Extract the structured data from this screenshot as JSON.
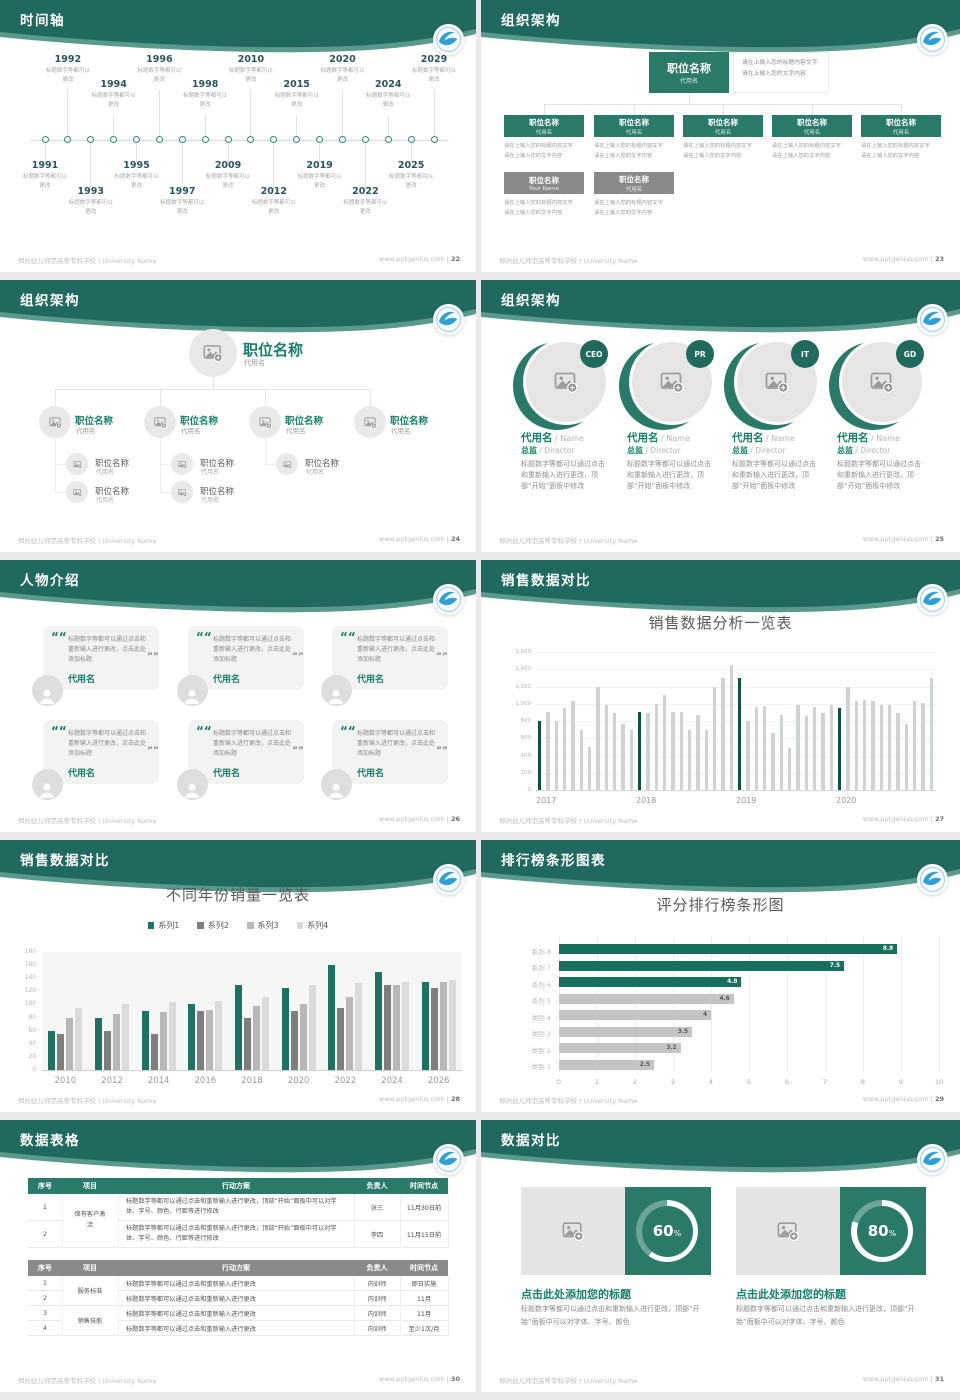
{
  "footer": {
    "school": "郑州幼儿师范高等专科学校 | University Name",
    "site": "www.pptgenius.com",
    "divider": "|"
  },
  "colors": {
    "band": "#20695e",
    "band_light": "#5a9a8d",
    "box_teal": "#2a7a6a",
    "box_gray": "#8a8a8a",
    "teal_text": "#17806b",
    "bar_dark": "#0d5243",
    "bar_gray": "#cfd3d1",
    "series": [
      "#1d7262",
      "#7f7f7f",
      "#b8b8b8",
      "#dadada"
    ],
    "hbar_teal": "#17705e",
    "hbar_gray": "#c4c4c4",
    "logo_blue": "#2f9fd5"
  },
  "slides": {
    "s22": {
      "title": "时间轴",
      "page": "22",
      "caption": "标题数字等都可以更改",
      "items": [
        {
          "year": "1991",
          "side": "bottom",
          "level": 1
        },
        {
          "year": "1992",
          "side": "top",
          "level": 1
        },
        {
          "year": "1993",
          "side": "bottom",
          "level": 2
        },
        {
          "year": "1994",
          "side": "top",
          "level": 2
        },
        {
          "year": "1995",
          "side": "bottom",
          "level": 1
        },
        {
          "year": "1996",
          "side": "top",
          "level": 1
        },
        {
          "year": "1997",
          "side": "bottom",
          "level": 2
        },
        {
          "year": "1998",
          "side": "top",
          "level": 2
        },
        {
          "year": "2009",
          "side": "bottom",
          "level": 1
        },
        {
          "year": "2010",
          "side": "top",
          "level": 1
        },
        {
          "year": "2012",
          "side": "bottom",
          "level": 2
        },
        {
          "year": "2015",
          "side": "top",
          "level": 2
        },
        {
          "year": "2019",
          "side": "bottom",
          "level": 1
        },
        {
          "year": "2020",
          "side": "top",
          "level": 1
        },
        {
          "year": "2022",
          "side": "bottom",
          "level": 2
        },
        {
          "year": "2024",
          "side": "top",
          "level": 2
        },
        {
          "year": "2025",
          "side": "bottom",
          "level": 1
        },
        {
          "year": "2029",
          "side": "top",
          "level": 1
        }
      ]
    },
    "s23": {
      "title": "组织架构",
      "page": "23",
      "box_title": "职位名称",
      "box_name": "代用名",
      "gray_names": [
        "Your Name",
        "代用名"
      ],
      "note_lines": [
        "请在上输入您的标题内容文字",
        "请在上输入您的文字内容"
      ],
      "desc_lines": [
        "请在上输入您的标题内容文字",
        "请在上输入您的文字内容"
      ]
    },
    "s24": {
      "title": "组织架构",
      "page": "24",
      "node_title": "职位名称",
      "node_name": "代用名",
      "children_counts": [
        2,
        2,
        1,
        0
      ]
    },
    "s25": {
      "title": "组织架构",
      "page": "25",
      "badges": [
        "CEO",
        "PR",
        "IT",
        "GD"
      ],
      "name_zh": "代用名",
      "name_en": "/ Name",
      "role_zh": "总监",
      "role_en": "/ Director",
      "paragraph": "标题数字等都可以通过点击和重新输入进行更改，顶部“开始”面板中修改"
    },
    "s26": {
      "title": "人物介绍",
      "page": "26",
      "cards": 6,
      "name": "代用名",
      "quote": "标题数字等都可以通过点击和重新输入进行更改，点击此处添加标题"
    },
    "s27": {
      "title": "销售数据对比",
      "page": "27"
    },
    "s28": {
      "title": "销售数据对比",
      "page": "28"
    },
    "s29": {
      "title": "排行榜条形图表",
      "page": "29"
    },
    "s30": {
      "title": "数据表格",
      "page": "30",
      "headers": [
        "序号",
        "项目",
        "行动方案",
        "负责人",
        "时间节点"
      ],
      "table1": {
        "project": "保有客户激活",
        "action": "标题数字等都可以通过点击和重新输入进行更改，顶部“开始”面板中可以对字体、字号、颜色、行距等进行修改",
        "rows": [
          {
            "no": "1",
            "owner": "张三",
            "time": "11月30日前"
          },
          {
            "no": "2",
            "owner": "李四",
            "time": "11月15日前"
          }
        ]
      },
      "table2": {
        "groups": [
          {
            "project": "服务标准",
            "rows": [
              {
                "no": "1",
                "action": "标题数字等都可以通过点击和重新输入进行更改",
                "owner": "内训师",
                "time": "即日实施"
              },
              {
                "no": "2",
                "action": "标题数字等都可以通过点击和重新输入进行更改",
                "owner": "内训师",
                "time": "11月"
              }
            ]
          },
          {
            "project": "销售技能",
            "rows": [
              {
                "no": "3",
                "action": "标题数字等都可以通过点击和重新输入进行更改",
                "owner": "内训师",
                "time": "11月"
              },
              {
                "no": "4",
                "action": "标题数字等都可以通过点击和重新输入进行更改",
                "owner": "内训师",
                "time": "至少1次/月"
              }
            ]
          }
        ]
      }
    },
    "s31": {
      "title": "数据对比",
      "page": "31",
      "heading": "点击此处添加您的标题",
      "paragraph": "标题数字等都可以通过点击和重新输入进行更改，顶部“开始”面板中可以对字体、字号、颜色",
      "cards": [
        {
          "percent": "60",
          "unit": "%"
        },
        {
          "percent": "80",
          "unit": "%"
        }
      ]
    }
  },
  "chart_data": [
    {
      "slide": "27",
      "type": "bar",
      "title": "销售数据分析一览表",
      "x_labels": [
        "2017",
        "2018",
        "2019",
        "2020"
      ],
      "x_label_bar_index": [
        0,
        12,
        24,
        36
      ],
      "ylim": [
        0,
        1600
      ],
      "ytick_step": 200,
      "grid": true,
      "legend_position": "none",
      "values": [
        800,
        900,
        800,
        950,
        1030,
        700,
        500,
        1200,
        980,
        890,
        770,
        700,
        900,
        890,
        1000,
        1100,
        900,
        900,
        700,
        870,
        700,
        1200,
        1300,
        1450,
        1300,
        800,
        960,
        970,
        660,
        870,
        490,
        980,
        860,
        960,
        890,
        980,
        950,
        1200,
        1030,
        1040,
        1030,
        990,
        980,
        890,
        770,
        1030,
        1010,
        1300
      ],
      "highlight_indices": [
        0,
        12,
        24,
        36
      ]
    },
    {
      "slide": "28",
      "type": "bar",
      "title": "不同年份销量一览表",
      "categories": [
        "2010",
        "2012",
        "2014",
        "2016",
        "2018",
        "2020",
        "2022",
        "2024",
        "2026"
      ],
      "ylim": [
        0,
        180
      ],
      "ytick_step": 20,
      "grid": false,
      "legend_position": "top",
      "series": [
        {
          "name": "系列1",
          "values": [
            60,
            80,
            90,
            100,
            130,
            125,
            160,
            150,
            135
          ]
        },
        {
          "name": "系列2",
          "values": [
            55,
            60,
            55,
            90,
            80,
            90,
            95,
            130,
            125
          ]
        },
        {
          "name": "系列3",
          "values": [
            80,
            85,
            88,
            92,
            97,
            100,
            112,
            130,
            135
          ]
        },
        {
          "name": "系列4",
          "values": [
            95,
            100,
            103,
            105,
            112,
            130,
            133,
            135,
            138
          ]
        }
      ]
    },
    {
      "slide": "29",
      "type": "bar-horizontal",
      "title": "评分排行榜条形图",
      "categories": [
        "系列 8",
        "系列 7",
        "系列 6",
        "系列 5",
        "类别 4",
        "类别 3",
        "类别 2",
        "类别 1"
      ],
      "values": [
        8.9,
        7.5,
        4.8,
        4.6,
        4,
        3.5,
        3.2,
        2.5
      ],
      "value_labels": [
        "8.9",
        "7.5",
        "4.8",
        "4.6",
        "4",
        "3.5",
        "3.2",
        "2.5"
      ],
      "bar_styles": [
        "teal",
        "teal",
        "teal",
        "gray",
        "gray",
        "gray",
        "gray",
        "gray"
      ],
      "xlim": [
        0,
        10
      ],
      "xtick_step": 1,
      "grid": true
    }
  ]
}
